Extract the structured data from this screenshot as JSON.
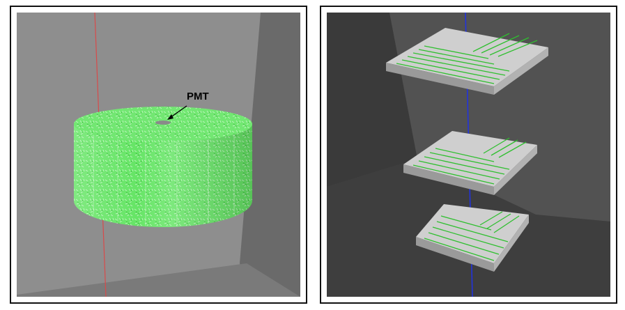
{
  "figure": {
    "left_panel": {
      "annotation_label": "PMT",
      "colors": {
        "background": "#8e8e8e",
        "right_wall": "#6a6a6a",
        "detector": "#5fe05f",
        "beam_line": "#d84a4a"
      }
    },
    "right_panel": {
      "colors": {
        "background": "#4a4a4a",
        "floor": "#3e3e3e",
        "plate": "#c8c8c8",
        "fiber": "#2fbf2f",
        "beam_line": "#2233dd"
      }
    }
  }
}
